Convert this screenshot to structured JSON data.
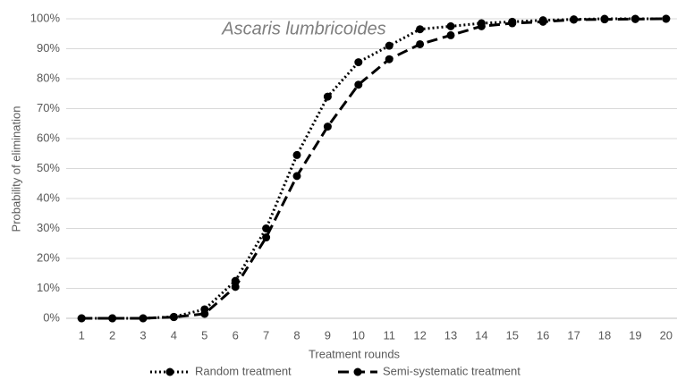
{
  "chart_data": {
    "type": "line",
    "title": "Ascaris lumbricoides",
    "xlabel": "Treatment rounds",
    "ylabel": "Probability of elimination",
    "categories": [
      "1",
      "2",
      "3",
      "4",
      "5",
      "6",
      "7",
      "8",
      "9",
      "10",
      "11",
      "12",
      "13",
      "14",
      "15",
      "16",
      "17",
      "18",
      "19",
      "20"
    ],
    "series": [
      {
        "name": "Random treatment",
        "color": "#000000",
        "dash": "dotted",
        "values": [
          0,
          0,
          0,
          0.5,
          3,
          12.5,
          30,
          54.5,
          74,
          85.5,
          91,
          96.5,
          97.5,
          98.5,
          99,
          99.5,
          99.8,
          100,
          100,
          100
        ]
      },
      {
        "name": "Semi-systematic treatment",
        "color": "#000000",
        "dash": "dashed",
        "values": [
          0,
          0,
          0,
          0.4,
          1.5,
          10.5,
          27,
          47.5,
          64,
          78,
          86.5,
          91.5,
          94.5,
          97.5,
          98.5,
          99,
          99.7,
          99.8,
          99.9,
          100
        ]
      }
    ],
    "ylim": [
      0,
      100
    ],
    "yticks": [
      {
        "value": 0,
        "label": "0%"
      },
      {
        "value": 10,
        "label": "10%"
      },
      {
        "value": 20,
        "label": "20%"
      },
      {
        "value": 30,
        "label": "30%"
      },
      {
        "value": 40,
        "label": "40%"
      },
      {
        "value": 50,
        "label": "50%"
      },
      {
        "value": 60,
        "label": "60%"
      },
      {
        "value": 70,
        "label": "70%"
      },
      {
        "value": 80,
        "label": "80%"
      },
      {
        "value": 90,
        "label": "90%"
      },
      {
        "value": 100,
        "label": "100%"
      }
    ],
    "grid": true,
    "legend": "bottom"
  }
}
